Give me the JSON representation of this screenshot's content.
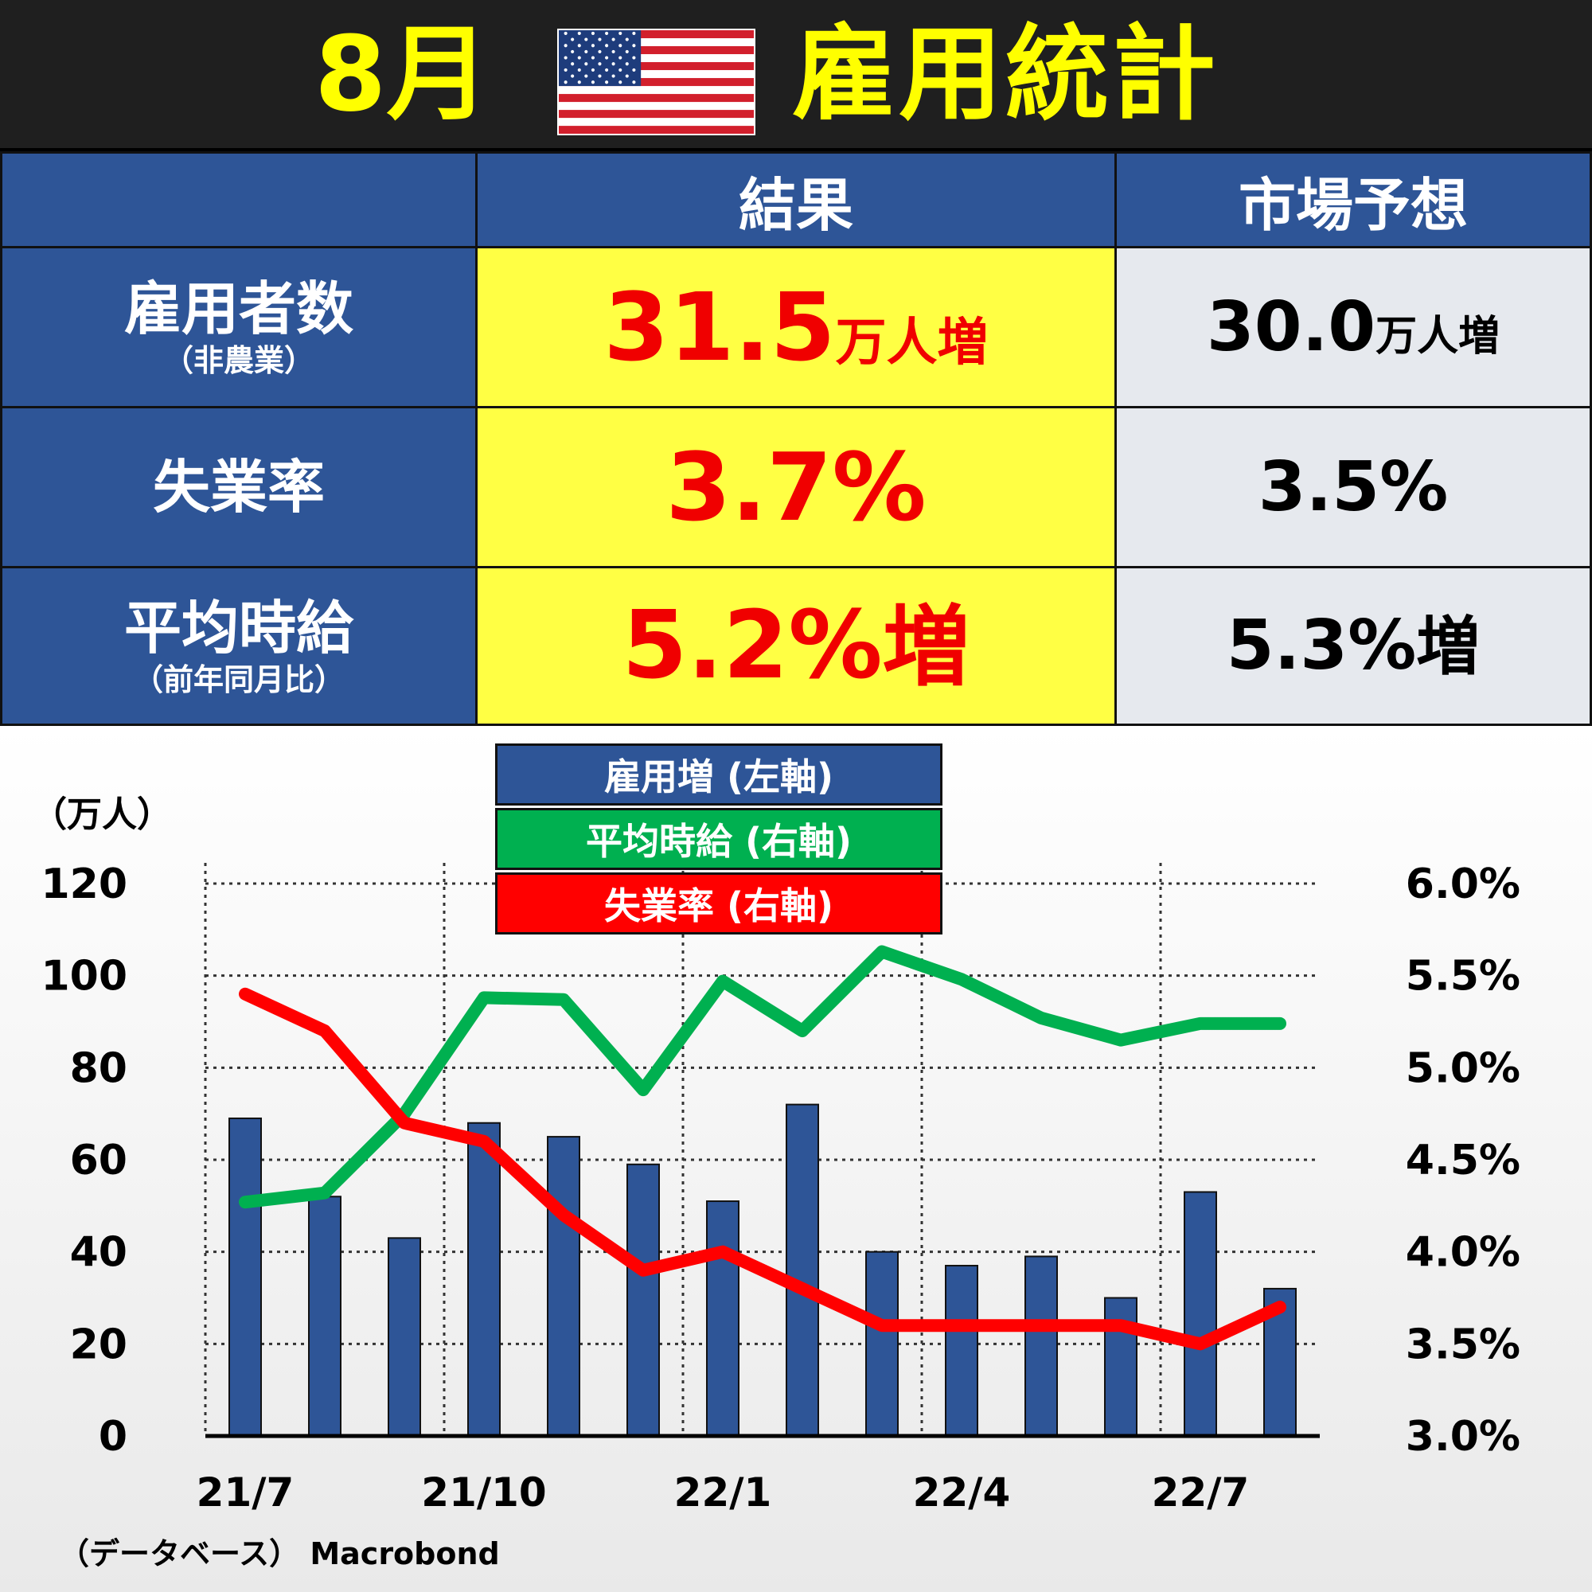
{
  "title": {
    "month": "8月",
    "main": "雇用統計"
  },
  "table": {
    "col_result": "結果",
    "col_expect": "市場予想",
    "rows": [
      {
        "label": "雇用者数",
        "sub": "（非農業）",
        "result_num": "31.5",
        "result_unit": "万人増",
        "expect_num": "30.0",
        "expect_unit": "万人増"
      },
      {
        "label": "失業率",
        "sub": "",
        "result_num": "3.7%",
        "result_unit": "",
        "expect_num": "3.5%",
        "expect_unit": ""
      },
      {
        "label": "平均時給",
        "sub": "（前年同月比）",
        "result_num": "5.2%",
        "result_unit": "増",
        "expect_num": "5.3%",
        "expect_unit": "増"
      }
    ]
  },
  "colors": {
    "bar": "#2e5597",
    "avg_wage": "#00b050",
    "unemployment": "#ff0000",
    "header": "#2e5597",
    "result_bg": "#ffff44",
    "result_text": "#f00000",
    "expect_bg": "#e6e9ee"
  },
  "chart_data": {
    "type": "bar+line",
    "left_unit": "（万人）",
    "left_ylim": [
      0,
      120
    ],
    "left_ticks": [
      0,
      20,
      40,
      60,
      80,
      100,
      120
    ],
    "right_ylim": [
      3.0,
      6.0
    ],
    "right_ticks": [
      "3.0%",
      "3.5%",
      "4.0%",
      "4.5%",
      "5.0%",
      "5.5%",
      "6.0%"
    ],
    "x_labels": [
      "21/7",
      "21/10",
      "22/1",
      "22/4",
      "22/7"
    ],
    "categories": [
      "21/7",
      "21/8",
      "21/9",
      "21/10",
      "21/11",
      "21/12",
      "22/1",
      "22/2",
      "22/3",
      "22/4",
      "22/5",
      "22/6",
      "22/7",
      "22/8"
    ],
    "grid": true,
    "legend": [
      {
        "label": "雇用増 (左軸)",
        "color": "#2e5597"
      },
      {
        "label": "平均時給 (右軸)",
        "color": "#00b050"
      },
      {
        "label": "失業率 (右軸)",
        "color": "#ff0000"
      }
    ],
    "series": [
      {
        "name": "雇用増 (左軸)",
        "type": "bar",
        "axis": "left",
        "values": [
          69,
          52,
          43,
          68,
          65,
          59,
          51,
          72,
          40,
          37,
          39,
          30,
          53,
          32
        ]
      },
      {
        "name": "平均時給 (右軸)",
        "type": "line",
        "axis": "right",
        "values": [
          4.27,
          4.32,
          4.75,
          5.38,
          5.37,
          4.88,
          5.47,
          5.2,
          5.63,
          5.48,
          5.27,
          5.15,
          5.24,
          5.24
        ]
      },
      {
        "name": "失業率 (右軸)",
        "type": "line",
        "axis": "right",
        "values": [
          5.4,
          5.2,
          4.7,
          4.6,
          4.2,
          3.9,
          4.0,
          3.8,
          3.6,
          3.6,
          3.6,
          3.6,
          3.5,
          3.7
        ]
      }
    ]
  },
  "source": "（データベース） Macrobond"
}
